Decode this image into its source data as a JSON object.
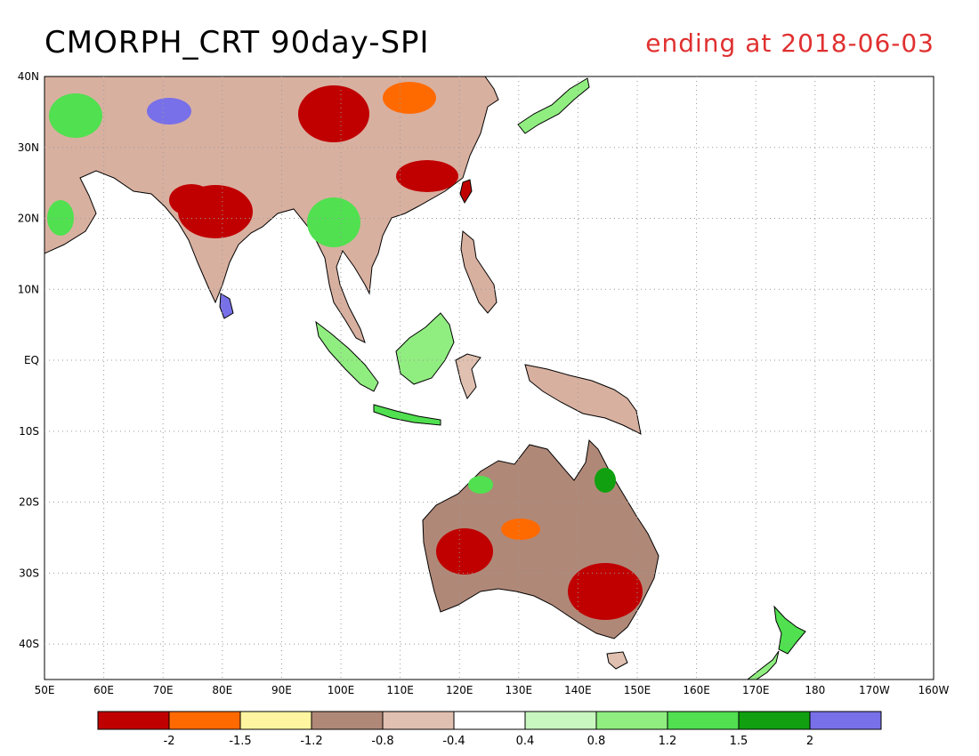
{
  "title": "CMORPH_CRT 90day-SPI",
  "subtitle": "ending at 2018-06-03",
  "lat_labels": [
    "40N",
    "30N",
    "20N",
    "10N",
    "EQ",
    "10S",
    "20S",
    "30S",
    "40S"
  ],
  "lon_labels": [
    "50E",
    "60E",
    "70E",
    "80E",
    "90E",
    "100E",
    "110E",
    "120E",
    "130E",
    "140E",
    "150E",
    "160E",
    "170E",
    "180",
    "170W",
    "160W"
  ],
  "legend": {
    "colors": [
      "#c00000",
      "#ff6a00",
      "#fff5a0",
      "#b08878",
      "#e0c0b0",
      "#ffffff",
      "#c8f8c0",
      "#90ee80",
      "#50e050",
      "#10a010",
      "#7870e8"
    ],
    "tick_labels": [
      "-2",
      "-1.5",
      "-1.2",
      "-0.8",
      "-0.4",
      "0.4",
      "0.8",
      "1.2",
      "1.5",
      "2"
    ]
  },
  "colors": {
    "title": "#000000",
    "subtitle": "#e03030",
    "coast": "#000000"
  }
}
